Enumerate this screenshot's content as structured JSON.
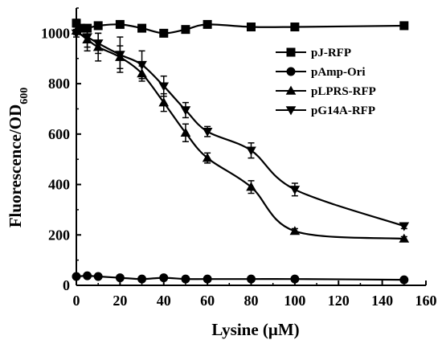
{
  "chart_data": {
    "type": "line",
    "xlabel": "Lysine (μM)",
    "ylabel": "Fluorescence/OD",
    "ylabel_sub": "600",
    "xlim": [
      0,
      160
    ],
    "ylim": [
      0,
      1100
    ],
    "xticks": [
      0,
      20,
      40,
      60,
      80,
      100,
      120,
      140,
      160
    ],
    "yticks": [
      0,
      200,
      400,
      600,
      800,
      1000
    ],
    "grid": false,
    "legend_position": "right",
    "series": [
      {
        "name": "pJ-RFP",
        "marker": "square",
        "x": [
          0,
          2,
          5,
          10,
          20,
          30,
          40,
          50,
          60,
          80,
          100,
          150
        ],
        "y": [
          1040,
          1020,
          1020,
          1030,
          1035,
          1020,
          1000,
          1015,
          1035,
          1025,
          1025,
          1030
        ],
        "err": [
          15,
          10,
          10,
          10,
          8,
          8,
          12,
          10,
          8,
          8,
          6,
          8
        ]
      },
      {
        "name": "pAmp-Ori",
        "marker": "circle",
        "x": [
          0,
          5,
          10,
          20,
          30,
          40,
          50,
          60,
          80,
          100,
          150
        ],
        "y": [
          35,
          38,
          35,
          30,
          25,
          30,
          25,
          25,
          25,
          25,
          22
        ],
        "err": [
          4,
          4,
          4,
          4,
          4,
          4,
          4,
          4,
          4,
          4,
          4
        ]
      },
      {
        "name": "pLPRS-RFP",
        "marker": "triangle-up",
        "x": [
          0,
          5,
          10,
          20,
          30,
          40,
          50,
          60,
          80,
          100,
          150
        ],
        "y": [
          1010,
          975,
          945,
          905,
          840,
          725,
          605,
          505,
          390,
          215,
          185
        ],
        "err": [
          15,
          45,
          55,
          45,
          30,
          35,
          35,
          20,
          25,
          10,
          8
        ]
      },
      {
        "name": "pG14A-RFP",
        "marker": "triangle-down",
        "x": [
          0,
          5,
          10,
          20,
          30,
          40,
          50,
          60,
          80,
          100,
          150
        ],
        "y": [
          1000,
          985,
          960,
          915,
          875,
          790,
          695,
          610,
          535,
          380,
          235
        ],
        "err": [
          15,
          40,
          40,
          70,
          55,
          40,
          30,
          20,
          30,
          25,
          10
        ]
      }
    ]
  }
}
